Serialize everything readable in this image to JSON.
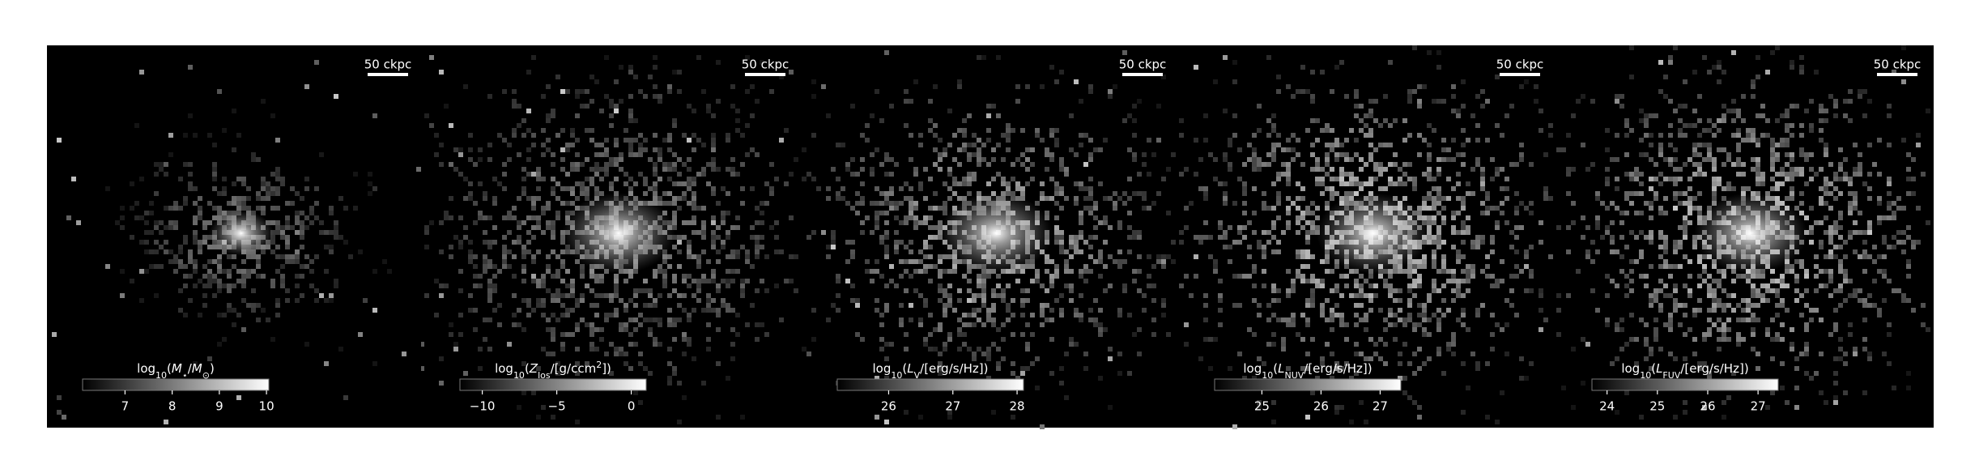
{
  "chart_data": [
    {
      "type": "image",
      "scalebar": "50 ckpc",
      "label": [
        {
          "text": "log"
        },
        {
          "text": "10",
          "shift": "sub"
        },
        {
          "text": "("
        },
        {
          "text": "M",
          "style": "italic"
        },
        {
          "text": "⋆",
          "shift": "sub"
        },
        {
          "text": "/"
        },
        {
          "text": "M",
          "style": "italic"
        },
        {
          "text": "⊙",
          "shift": "sub"
        },
        {
          "text": ")"
        }
      ],
      "clim": [
        6.1,
        10.05
      ],
      "cticks": [
        7,
        8,
        9,
        10
      ],
      "cmap": [
        "#000000",
        "#ffffff"
      ]
    },
    {
      "type": "image",
      "scalebar": "50 ckpc",
      "label": [
        {
          "text": "log"
        },
        {
          "text": "10",
          "shift": "sub"
        },
        {
          "text": "("
        },
        {
          "text": "Z",
          "style": "italic"
        },
        {
          "text": "los",
          "shift": "sub"
        },
        {
          "text": "/[g/ccm"
        },
        {
          "text": "2",
          "shift": "super"
        },
        {
          "text": "])"
        }
      ],
      "clim": [
        -11.5,
        1
      ],
      "cticks": [
        {
          "value": -10,
          "label": "−10"
        },
        {
          "value": -5,
          "label": "−5"
        },
        0
      ],
      "cmap": [
        "#000000",
        "#ffffff"
      ]
    },
    {
      "type": "image",
      "scalebar": "50 ckpc",
      "label": [
        {
          "text": "log"
        },
        {
          "text": "10",
          "shift": "sub"
        },
        {
          "text": "("
        },
        {
          "text": "L",
          "style": "italic"
        },
        {
          "text": "V",
          "shift": "sub"
        },
        {
          "text": "/[erg/s/Hz])"
        }
      ],
      "clim": [
        25.2,
        28.1
      ],
      "cticks": [
        26,
        27,
        28
      ],
      "cmap": [
        "#000000",
        "#ffffff"
      ]
    },
    {
      "type": "image",
      "scalebar": "50 ckpc",
      "label": [
        {
          "text": "log"
        },
        {
          "text": "10",
          "shift": "sub"
        },
        {
          "text": "("
        },
        {
          "text": "L",
          "style": "italic"
        },
        {
          "text": "NUV",
          "shift": "sub"
        },
        {
          "text": "/[erg/s/Hz])"
        }
      ],
      "clim": [
        24.2,
        27.35
      ],
      "cticks": [
        25,
        26,
        27
      ],
      "cmap": [
        "#000000",
        "#ffffff"
      ]
    },
    {
      "type": "image",
      "scalebar": "50 ckpc",
      "label": [
        {
          "text": "log"
        },
        {
          "text": "10",
          "shift": "sub"
        },
        {
          "text": "("
        },
        {
          "text": "L",
          "style": "italic"
        },
        {
          "text": "FUV",
          "shift": "sub"
        },
        {
          "text": "/[erg/s/Hz])"
        }
      ],
      "clim": [
        23.7,
        27.4
      ],
      "cticks": [
        24,
        25,
        26,
        27
      ],
      "cmap": [
        "#000000",
        "#ffffff"
      ]
    }
  ]
}
